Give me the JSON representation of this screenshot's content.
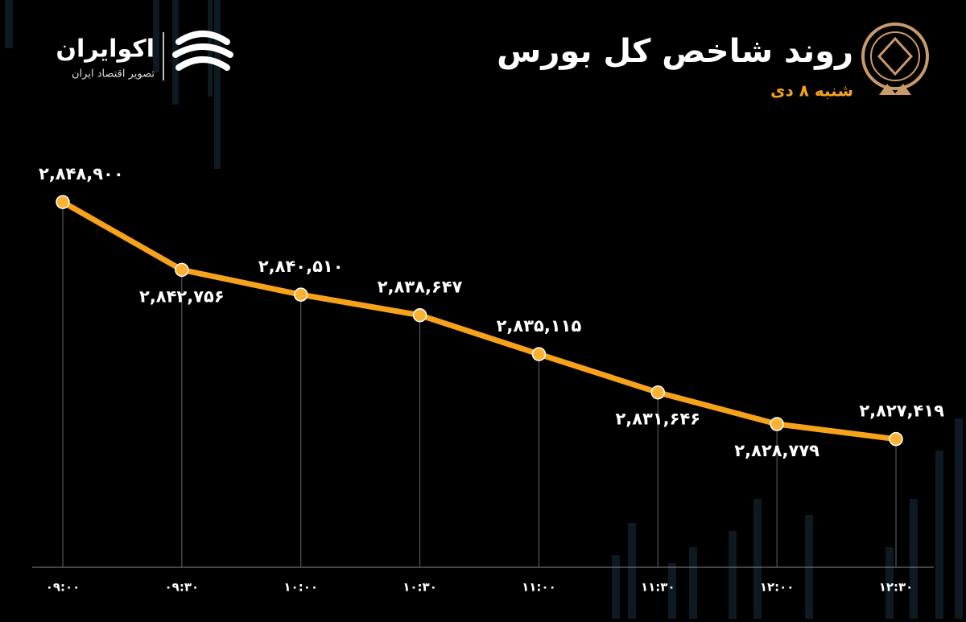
{
  "brand": {
    "name": "اکوایران",
    "tagline": "تصویر اقتصاد ایران"
  },
  "chart_data": {
    "type": "line",
    "title": "روند شاخص کل بورس",
    "subtitle": "شنبه ۸ دی",
    "categories": [
      "۰۹:۰۰",
      "۰۹:۳۰",
      "۱۰:۰۰",
      "۱۰:۳۰",
      "۱۱:۰۰",
      "۱۱:۳۰",
      "۱۲:۰۰",
      "۱۲:۳۰"
    ],
    "series": [
      {
        "color": "#f7a21b",
        "values": [
          2848900,
          2842756,
          2840510,
          2838647,
          2835115,
          2831646,
          2828779,
          2827419
        ],
        "value_labels": [
          "۲,۸۴۸,۹۰۰",
          "۲,۸۴۲,۷۵۶",
          "۲,۸۴۰,۵۱۰",
          "۲,۸۳۸,۶۴۷",
          "۲,۸۳۵,۱۱۵",
          "۲,۸۳۱,۶۴۶",
          "۲,۸۲۸,۷۷۹",
          "۲,۸۲۷,۴۱۹"
        ]
      }
    ],
    "ylim": [
      2815800,
      2850000
    ]
  }
}
